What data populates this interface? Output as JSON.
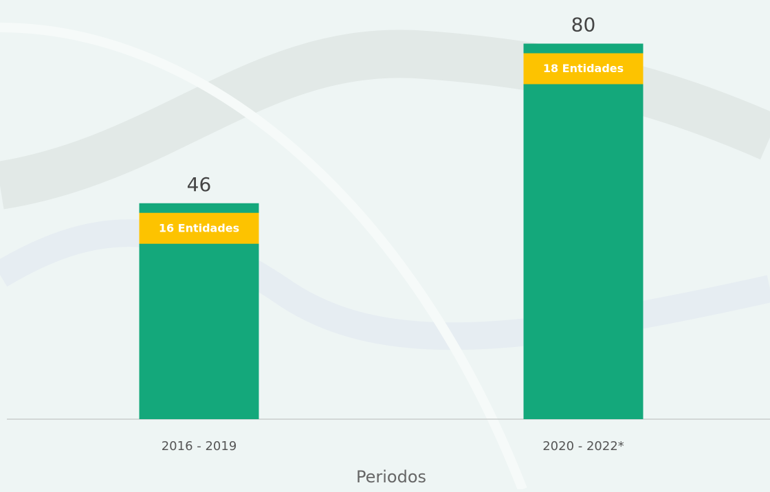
{
  "chart_data": {
    "type": "bar",
    "categories": [
      "2016 - 2019",
      "2020 - 2022*"
    ],
    "values": [
      46,
      80
    ],
    "annotations": [
      "16 Entidades",
      "18 Entidades"
    ],
    "color": "#14a87b",
    "annotation_color": "#fdc300",
    "xlabel": "Periodos",
    "ylim": [
      0,
      89
    ]
  }
}
